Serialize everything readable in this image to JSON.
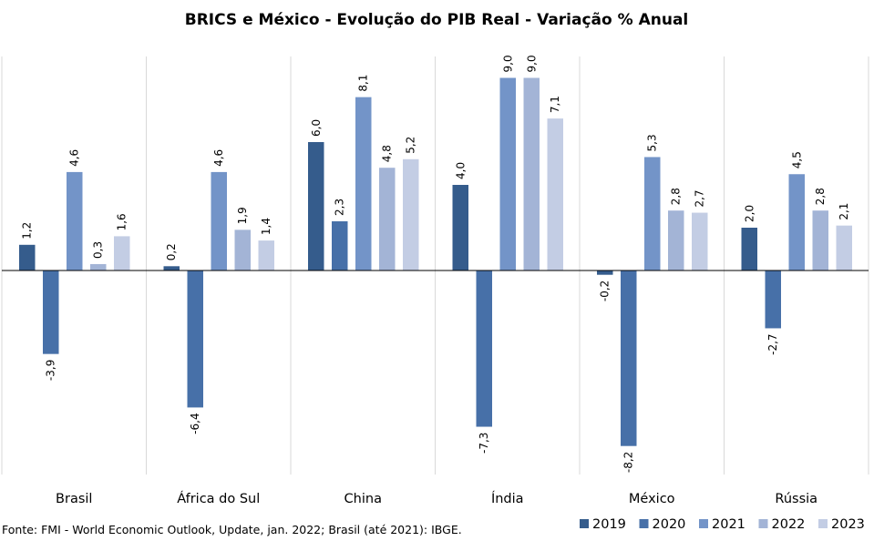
{
  "chart_data": {
    "type": "bar",
    "title": "BRICS e México - Evolução do PIB Real - Variação % Anual",
    "categories": [
      "Brasil",
      "África do Sul",
      "China",
      "Índia",
      "México",
      "Rússia"
    ],
    "series": [
      {
        "name": "2019",
        "color": "#355c8c",
        "values": [
          1.2,
          0.2,
          6.0,
          4.0,
          -0.2,
          2.0
        ],
        "labels": [
          "1,2",
          "0,2",
          "6,0",
          "4,0",
          "-0,2",
          "2,0"
        ]
      },
      {
        "name": "2020",
        "color": "#4770a8",
        "values": [
          -3.9,
          -6.4,
          2.3,
          -7.3,
          -8.2,
          -2.7
        ],
        "labels": [
          "-3,9",
          "-6,4",
          "2,3",
          "-7,3",
          "-8,2",
          "-2,7"
        ]
      },
      {
        "name": "2021",
        "color": "#7394c8",
        "values": [
          4.6,
          4.6,
          8.1,
          9.0,
          5.3,
          4.5
        ],
        "labels": [
          "4,6",
          "4,6",
          "8,1",
          "9,0",
          "5,3",
          "4,5"
        ]
      },
      {
        "name": "2022",
        "color": "#a3b4d6",
        "values": [
          0.3,
          1.9,
          4.8,
          9.0,
          2.8,
          2.8
        ],
        "labels": [
          "0,3",
          "1,9",
          "4,8",
          "9,0",
          "2,8",
          "2,8"
        ]
      },
      {
        "name": "2023",
        "color": "#c3cde4",
        "values": [
          1.6,
          1.4,
          5.2,
          7.1,
          2.7,
          2.1
        ],
        "labels": [
          "1,6",
          "1,4",
          "5,2",
          "7,1",
          "2,7",
          "2,1"
        ]
      }
    ],
    "ylim": [
      -9.5,
      9.5
    ],
    "grid": false,
    "legend_position": "bottom-right",
    "source": "Fonte: FMI - World Economic Outlook, Update, jan. 2022; Brasil (até 2021): IBGE."
  }
}
